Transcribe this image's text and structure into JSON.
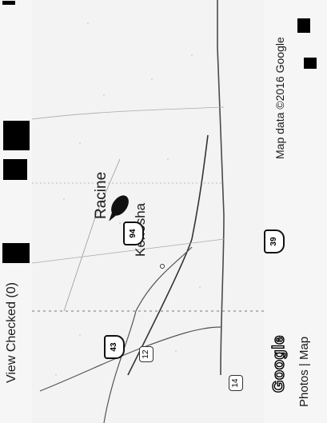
{
  "header": {
    "view_checked_label": "View Checked (0)"
  },
  "map": {
    "cities": {
      "racine": "Racine",
      "kenosha": "Kenosha"
    },
    "highways": {
      "i94": "94",
      "i43": "43",
      "us12": "12",
      "us14": "14",
      "i39": "39"
    },
    "marker_icon": "map-pin-icon",
    "attribution": "Map data ©2016 Google",
    "logo_text": "Google"
  },
  "footer": {
    "photos_label": "Photos",
    "separator": "|",
    "map_label": "Map"
  }
}
